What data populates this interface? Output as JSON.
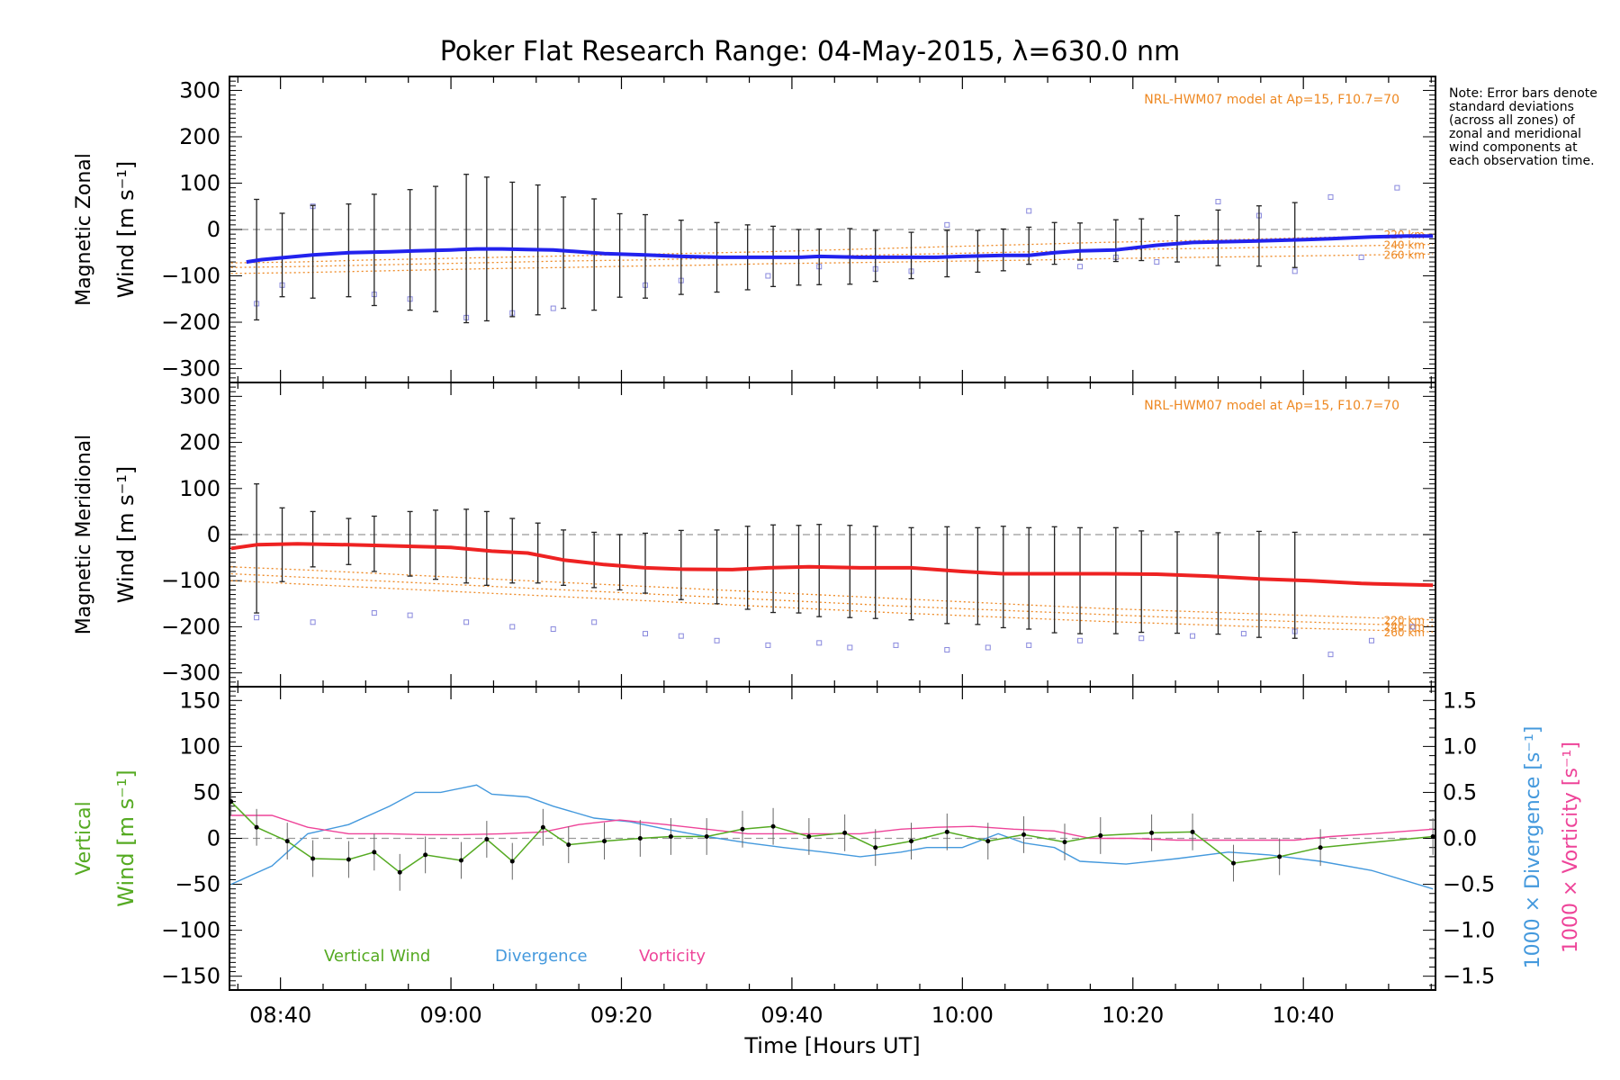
{
  "title": "Poker Flat Research Range: 04-May-2015, λ=630.0 nm",
  "note": "Note: Error bars denote standard deviations (across all zones) of zonal and meridional wind components at each observation time.",
  "colors": {
    "zonal": "#2222ee",
    "meridional": "#ee2222",
    "vertical": "#55aa22",
    "divergence": "#4499dd",
    "vorticity": "#ee4499",
    "model": "#ee8822",
    "errorbar": "#222222",
    "zero_line": "#999999"
  },
  "chart_data": [
    {
      "type": "line",
      "panel": "zonal",
      "ylabel_line1": "Magnetic Zonal",
      "ylabel_line2": "Wind [m s⁻¹]",
      "ylim": [
        -330,
        330
      ],
      "yticks": [
        -300,
        -200,
        -100,
        0,
        100,
        200,
        300
      ],
      "ytick_labels": [
        "−300",
        "−200",
        "−100",
        "0",
        "100",
        "200",
        "300"
      ],
      "model_text": "NRL-HWM07 model at Ap=15, F10.7=70",
      "model_labels": [
        "220 km",
        "240 km",
        "260 km"
      ],
      "x": [
        8.6,
        8.63,
        8.73,
        8.8,
        8.88,
        8.93,
        9.0,
        9.05,
        9.1,
        9.15,
        9.2,
        9.3,
        9.38,
        9.45,
        9.53,
        9.62,
        9.68,
        9.72,
        9.8,
        9.87,
        9.95,
        10.0,
        10.08,
        10.13,
        10.18,
        10.23,
        10.3,
        10.38,
        10.45,
        10.53,
        10.6,
        10.67,
        10.72,
        10.8,
        10.87,
        10.92
      ],
      "y": [
        -70,
        -65,
        -55,
        -50,
        -48,
        -46,
        -44,
        -42,
        -42,
        -43,
        -44,
        -52,
        -55,
        -58,
        -60,
        -60,
        -60,
        -58,
        -60,
        -60,
        -60,
        -58,
        -56,
        -56,
        -50,
        -46,
        -44,
        -34,
        -28,
        -26,
        -24,
        -22,
        -20,
        -16,
        -14,
        -14
      ],
      "err_x": [
        8.62,
        8.67,
        8.73,
        8.8,
        8.85,
        8.92,
        8.97,
        9.03,
        9.07,
        9.12,
        9.17,
        9.22,
        9.28,
        9.33,
        9.38,
        9.45,
        9.52,
        9.58,
        9.63,
        9.68,
        9.72,
        9.78,
        9.83,
        9.9,
        9.97,
        10.03,
        10.08,
        10.13,
        10.18,
        10.23,
        10.3,
        10.35,
        10.42,
        10.5,
        10.58,
        10.65
      ],
      "err_y": [
        -65,
        -55,
        -48,
        -45,
        -44,
        -44,
        -42,
        -41,
        -42,
        -43,
        -44,
        -50,
        -54,
        -56,
        -58,
        -60,
        -60,
        -60,
        -58,
        -60,
        -59,
        -58,
        -57,
        -56,
        -52,
        -47,
        -44,
        -35,
        -30,
        -26,
        -24,
        -22,
        -20,
        -18,
        -14,
        -12
      ],
      "err_sd": [
        130,
        90,
        100,
        100,
        120,
        130,
        135,
        160,
        155,
        145,
        140,
        120,
        120,
        90,
        90,
        80,
        75,
        70,
        65,
        60,
        60,
        60,
        55,
        50,
        50,
        45,
        45,
        40,
        45,
        40,
        45,
        45,
        50,
        60,
        65,
        70
      ],
      "model_220_y": [
        -72,
        -70,
        -66,
        -63,
        -60,
        -57,
        -54,
        -51,
        -48,
        -44,
        -40,
        -36,
        -32,
        -28,
        -25,
        -22,
        -18,
        -15,
        -10
      ],
      "model_240_y": [
        -82,
        -80,
        -77,
        -74,
        -71,
        -68,
        -66,
        -63,
        -60,
        -57,
        -54,
        -51,
        -48,
        -45,
        -42,
        -40,
        -37,
        -35,
        -32
      ],
      "model_260_y": [
        -95,
        -93,
        -90,
        -87,
        -84,
        -82,
        -79,
        -77,
        -74,
        -72,
        -70,
        -68,
        -66,
        -63,
        -61,
        -59,
        -57,
        -55,
        -53
      ],
      "model_x_start": 8.57,
      "model_x_end": 10.92,
      "scatter_x": [
        8.62,
        8.67,
        8.73,
        8.85,
        8.92,
        9.03,
        9.12,
        9.2,
        9.38,
        9.45,
        9.62,
        9.72,
        9.83,
        9.9,
        9.97,
        10.13,
        10.23,
        10.3,
        10.38,
        10.5,
        10.58,
        10.65,
        10.72,
        10.78,
        10.85
      ],
      "scatter_y": [
        -160,
        -120,
        50,
        -140,
        -150,
        -190,
        -180,
        -170,
        -120,
        -110,
        -100,
        -80,
        -85,
        -90,
        10,
        40,
        -80,
        -60,
        -70,
        60,
        30,
        -90,
        70,
        -60,
        90
      ]
    },
    {
      "type": "line",
      "panel": "meridional",
      "ylabel_line1": "Magnetic Meridional",
      "ylabel_line2": "Wind [m s⁻¹]",
      "ylim": [
        -330,
        330
      ],
      "yticks": [
        -300,
        -200,
        -100,
        0,
        100,
        200,
        300
      ],
      "ytick_labels": [
        "−300",
        "−200",
        "−100",
        "0",
        "100",
        "200",
        "300"
      ],
      "model_text": "NRL-HWM07 model at Ap=15, F10.7=70",
      "model_labels": [
        "220 km",
        "240 km",
        "260 km"
      ],
      "x": [
        8.57,
        8.62,
        8.7,
        8.8,
        8.9,
        9.0,
        9.08,
        9.15,
        9.22,
        9.3,
        9.38,
        9.45,
        9.55,
        9.62,
        9.7,
        9.8,
        9.9,
        10.0,
        10.08,
        10.18,
        10.28,
        10.38,
        10.48,
        10.58,
        10.68,
        10.78,
        10.92
      ],
      "y": [
        -30,
        -22,
        -20,
        -22,
        -25,
        -28,
        -36,
        -40,
        -55,
        -65,
        -72,
        -75,
        -76,
        -72,
        -70,
        -72,
        -72,
        -80,
        -85,
        -85,
        -85,
        -86,
        -90,
        -96,
        -100,
        -106,
        -110
      ],
      "err_x": [
        8.62,
        8.67,
        8.73,
        8.8,
        8.85,
        8.92,
        8.97,
        9.03,
        9.07,
        9.12,
        9.17,
        9.22,
        9.28,
        9.33,
        9.38,
        9.45,
        9.52,
        9.58,
        9.63,
        9.68,
        9.72,
        9.78,
        9.83,
        9.9,
        9.97,
        10.03,
        10.08,
        10.13,
        10.18,
        10.23,
        10.3,
        10.35,
        10.42,
        10.5,
        10.58,
        10.65
      ],
      "err_y": [
        -30,
        -22,
        -10,
        -15,
        -20,
        -20,
        -22,
        -25,
        -30,
        -35,
        -40,
        -50,
        -55,
        -60,
        -62,
        -66,
        -70,
        -72,
        -74,
        -75,
        -78,
        -80,
        -82,
        -85,
        -88,
        -90,
        -92,
        -95,
        -98,
        -100,
        -100,
        -102,
        -104,
        -106,
        -108,
        -110
      ],
      "err_sd": [
        140,
        80,
        60,
        50,
        60,
        70,
        75,
        80,
        80,
        70,
        65,
        60,
        60,
        60,
        65,
        75,
        80,
        90,
        95,
        95,
        100,
        100,
        100,
        100,
        105,
        105,
        110,
        110,
        115,
        115,
        115,
        110,
        110,
        110,
        115,
        115
      ],
      "model_220_y": [
        -70,
        -76,
        -83,
        -90,
        -97,
        -104,
        -111,
        -118,
        -125,
        -132,
        -139,
        -146,
        -153,
        -160,
        -165,
        -170,
        -175,
        -180,
        -185
      ],
      "model_240_y": [
        -85,
        -92,
        -99,
        -106,
        -113,
        -120,
        -127,
        -134,
        -141,
        -148,
        -155,
        -161,
        -167,
        -173,
        -179,
        -184,
        -189,
        -194,
        -198
      ],
      "model_260_y": [
        -100,
        -107,
        -114,
        -121,
        -128,
        -135,
        -142,
        -149,
        -156,
        -163,
        -170,
        -176,
        -182,
        -188,
        -193,
        -198,
        -203,
        -207,
        -211
      ],
      "model_x_start": 8.57,
      "model_x_end": 10.92,
      "scatter_x": [
        8.62,
        8.73,
        8.85,
        8.92,
        9.03,
        9.12,
        9.2,
        9.28,
        9.38,
        9.45,
        9.52,
        9.62,
        9.72,
        9.78,
        9.87,
        9.97,
        10.05,
        10.13,
        10.23,
        10.35,
        10.45,
        10.55,
        10.65,
        10.72,
        10.8,
        10.88
      ],
      "scatter_y": [
        -180,
        -190,
        -170,
        -175,
        -190,
        -200,
        -205,
        -190,
        -215,
        -220,
        -230,
        -240,
        -235,
        -245,
        -240,
        -250,
        -245,
        -240,
        -230,
        -225,
        -220,
        -215,
        -210,
        -260,
        -230,
        -200
      ]
    },
    {
      "type": "line",
      "panel": "vertical",
      "ylabel_line1": "Vertical",
      "ylabel_line2": "Wind [m s⁻¹]",
      "ylim": [
        -165,
        165
      ],
      "yticks": [
        -150,
        -100,
        -50,
        0,
        50,
        100,
        150
      ],
      "ytick_labels": [
        "−150",
        "−100",
        "−50",
        "0",
        "50",
        "100",
        "150"
      ],
      "y2label_divergence": "1000 × Divergence [s⁻¹]",
      "y2label_vorticity": "1000 × Vorticity [s⁻¹]",
      "y2lim": [
        -1.65,
        1.65
      ],
      "y2ticks": [
        -1.5,
        -1.0,
        -0.5,
        0.0,
        0.5,
        1.0,
        1.5
      ],
      "y2tick_labels": [
        "−1.5",
        "−1.0",
        "−0.5",
        "0.0",
        "0.5",
        "1.0",
        "1.5"
      ],
      "xticks": [
        8.6667,
        9.0,
        9.3333,
        9.6667,
        10.0,
        10.3333,
        10.6667
      ],
      "xtick_labels": [
        "08:40",
        "09:00",
        "09:20",
        "09:40",
        "10:00",
        "10:20",
        "10:40"
      ],
      "xlim": [
        8.567,
        10.925
      ],
      "xlabel": "Time [Hours UT]",
      "legend": [
        "Vertical Wind",
        "Divergence",
        "Vorticity"
      ],
      "vertical_x": [
        8.57,
        8.62,
        8.68,
        8.73,
        8.8,
        8.85,
        8.9,
        8.95,
        9.02,
        9.07,
        9.12,
        9.18,
        9.23,
        9.3,
        9.37,
        9.43,
        9.5,
        9.57,
        9.63,
        9.7,
        9.77,
        9.83,
        9.9,
        9.97,
        10.05,
        10.12,
        10.2,
        10.27,
        10.37,
        10.45,
        10.53,
        10.62,
        10.7,
        10.92
      ],
      "vertical_y": [
        40,
        12,
        -3,
        -22,
        -23,
        -15,
        -37,
        -18,
        -24,
        -1,
        -25,
        12,
        -7,
        -3,
        0,
        2,
        2,
        10,
        13,
        2,
        6,
        -10,
        -3,
        7,
        -3,
        4,
        -4,
        3,
        6,
        7,
        -27,
        -20,
        -10,
        2
      ],
      "vertical_err": [
        15,
        20,
        20,
        20,
        20,
        20,
        20,
        20,
        20,
        20,
        20,
        20,
        20,
        20,
        20,
        20,
        20,
        20,
        20,
        20,
        20,
        20,
        20,
        20,
        20,
        20,
        20,
        20,
        20,
        20,
        20,
        20,
        20,
        20
      ],
      "divergence_x": [
        8.57,
        8.65,
        8.72,
        8.8,
        8.88,
        8.93,
        8.98,
        9.05,
        9.08,
        9.15,
        9.2,
        9.28,
        9.35,
        9.42,
        9.5,
        9.58,
        9.65,
        9.73,
        9.8,
        9.88,
        9.93,
        10.0,
        10.07,
        10.12,
        10.18,
        10.23,
        10.32,
        10.42,
        10.52,
        10.6,
        10.7,
        10.8,
        10.92
      ],
      "divergence_y": [
        -0.5,
        -0.3,
        0.05,
        0.15,
        0.35,
        0.5,
        0.5,
        0.58,
        0.48,
        0.45,
        0.35,
        0.22,
        0.18,
        0.1,
        0.02,
        -0.05,
        -0.1,
        -0.15,
        -0.2,
        -0.15,
        -0.1,
        -0.1,
        0.05,
        -0.05,
        -0.1,
        -0.25,
        -0.28,
        -0.22,
        -0.15,
        -0.18,
        -0.25,
        -0.35,
        -0.55
      ],
      "vorticity_x": [
        8.57,
        8.65,
        8.72,
        8.8,
        8.88,
        8.95,
        9.02,
        9.1,
        9.18,
        9.25,
        9.33,
        9.42,
        9.5,
        9.58,
        9.65,
        9.73,
        9.8,
        9.88,
        9.95,
        10.02,
        10.1,
        10.18,
        10.25,
        10.33,
        10.42,
        10.5,
        10.58,
        10.65,
        10.72,
        10.8,
        10.92
      ],
      "vorticity_y": [
        0.25,
        0.25,
        0.12,
        0.05,
        0.05,
        0.04,
        0.04,
        0.05,
        0.07,
        0.15,
        0.2,
        0.15,
        0.1,
        0.05,
        0.05,
        0.05,
        0.05,
        0.1,
        0.12,
        0.13,
        0.1,
        0.08,
        0.0,
        0.0,
        -0.02,
        -0.02,
        -0.02,
        -0.02,
        0.02,
        0.05,
        0.1
      ]
    }
  ]
}
